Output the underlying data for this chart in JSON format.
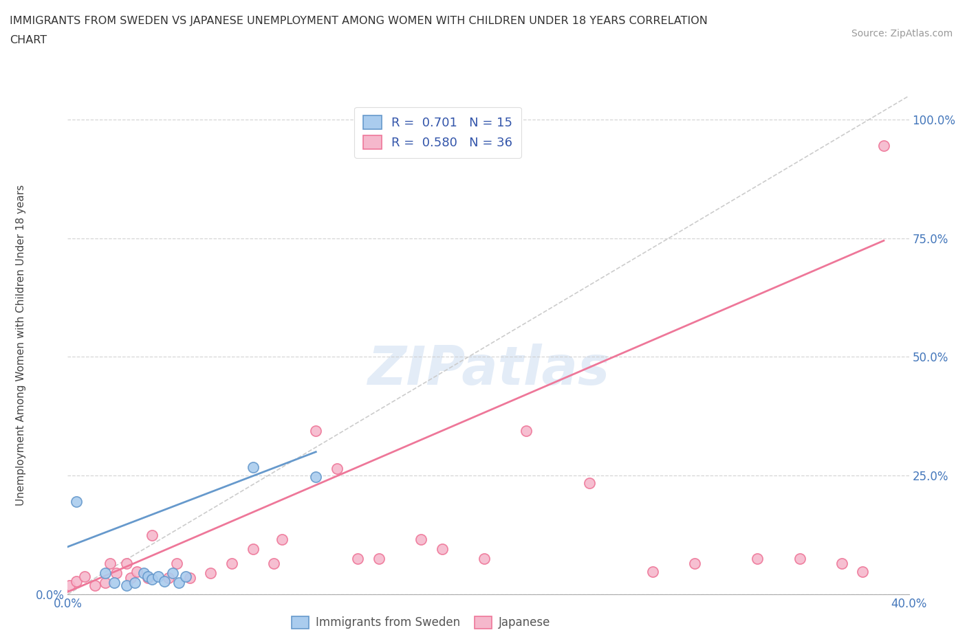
{
  "title_line1": "IMMIGRANTS FROM SWEDEN VS JAPANESE UNEMPLOYMENT AMONG WOMEN WITH CHILDREN UNDER 18 YEARS CORRELATION",
  "title_line2": "CHART",
  "source": "Source: ZipAtlas.com",
  "ylabel": "Unemployment Among Women with Children Under 18 years",
  "xlim": [
    0.0,
    0.4
  ],
  "ylim": [
    0.0,
    1.05
  ],
  "xticks": [
    0.0,
    0.1,
    0.2,
    0.3,
    0.4
  ],
  "yticks": [
    0.0,
    0.25,
    0.5,
    0.75,
    1.0
  ],
  "xtick_labels": [
    "0.0%",
    "",
    "",
    "",
    "40.0%"
  ],
  "ytick_labels_left": [
    "0.0%",
    "",
    "",
    "",
    ""
  ],
  "ytick_labels_right": [
    "",
    "25.0%",
    "50.0%",
    "75.0%",
    "100.0%"
  ],
  "legend_r1": "R =  0.701   N = 15",
  "legend_r2": "R =  0.580   N = 36",
  "watermark": "ZIPatlas",
  "background_color": "#ffffff",
  "grid_color": "#cccccc",
  "scatter_blue_color": "#aaccee",
  "scatter_pink_color": "#f5b8cc",
  "line_blue_color": "#6699cc",
  "line_pink_color": "#ee7799",
  "diag_color": "#cccccc",
  "blue_points_x": [
    0.004,
    0.018,
    0.022,
    0.028,
    0.032,
    0.036,
    0.038,
    0.04,
    0.043,
    0.046,
    0.05,
    0.053,
    0.056,
    0.088,
    0.118
  ],
  "blue_points_y": [
    0.195,
    0.045,
    0.025,
    0.018,
    0.025,
    0.045,
    0.038,
    0.032,
    0.038,
    0.028,
    0.045,
    0.025,
    0.038,
    0.268,
    0.248
  ],
  "pink_points_x": [
    0.001,
    0.004,
    0.008,
    0.013,
    0.018,
    0.02,
    0.023,
    0.028,
    0.03,
    0.033,
    0.038,
    0.04,
    0.048,
    0.052,
    0.058,
    0.068,
    0.078,
    0.088,
    0.098,
    0.102,
    0.118,
    0.128,
    0.138,
    0.148,
    0.168,
    0.178,
    0.198,
    0.218,
    0.248,
    0.278,
    0.298,
    0.328,
    0.348,
    0.368,
    0.378,
    0.388
  ],
  "pink_points_y": [
    0.018,
    0.028,
    0.038,
    0.018,
    0.025,
    0.065,
    0.045,
    0.065,
    0.035,
    0.048,
    0.035,
    0.125,
    0.035,
    0.065,
    0.035,
    0.045,
    0.065,
    0.095,
    0.065,
    0.115,
    0.345,
    0.265,
    0.075,
    0.075,
    0.115,
    0.095,
    0.075,
    0.345,
    0.235,
    0.048,
    0.065,
    0.075,
    0.075,
    0.065,
    0.048,
    0.945
  ],
  "blue_line_x": [
    0.0,
    0.118
  ],
  "blue_line_y": [
    0.1,
    0.3
  ],
  "pink_line_x": [
    0.0,
    0.388
  ],
  "pink_line_y": [
    0.005,
    0.745
  ],
  "diag_line_x": [
    0.0,
    0.4
  ],
  "diag_line_y": [
    0.0,
    1.05
  ]
}
